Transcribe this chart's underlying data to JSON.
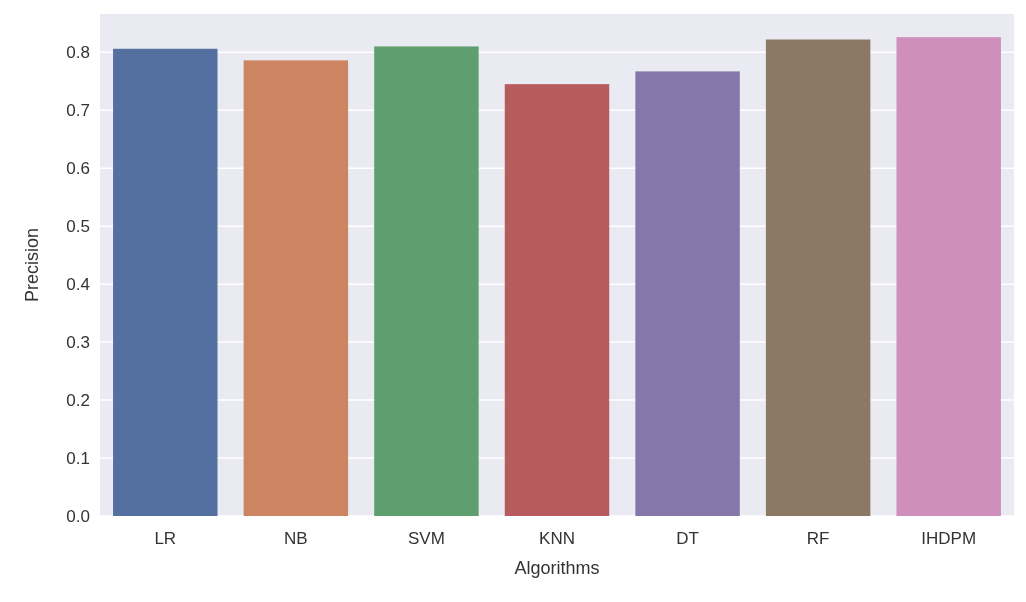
{
  "chart_data": {
    "type": "bar",
    "xlabel": "Algorithms",
    "ylabel": "Precision",
    "categories": [
      "LR",
      "NB",
      "SVM",
      "KNN",
      "DT",
      "RF",
      "IHDPM"
    ],
    "values": [
      0.806,
      0.786,
      0.81,
      0.745,
      0.767,
      0.822,
      0.826
    ],
    "colors": [
      "#5470a0",
      "#cc8560",
      "#5f9e6e",
      "#b65c5f",
      "#8577aa",
      "#8c7864",
      "#cf8fbd"
    ],
    "ylim": [
      0,
      0.866
    ],
    "yticks": [
      {
        "value": 0,
        "label": "0.0"
      },
      0.1,
      0.2,
      0.3,
      0.4,
      0.5,
      0.6,
      0.7,
      0.8
    ],
    "grid": "y"
  }
}
